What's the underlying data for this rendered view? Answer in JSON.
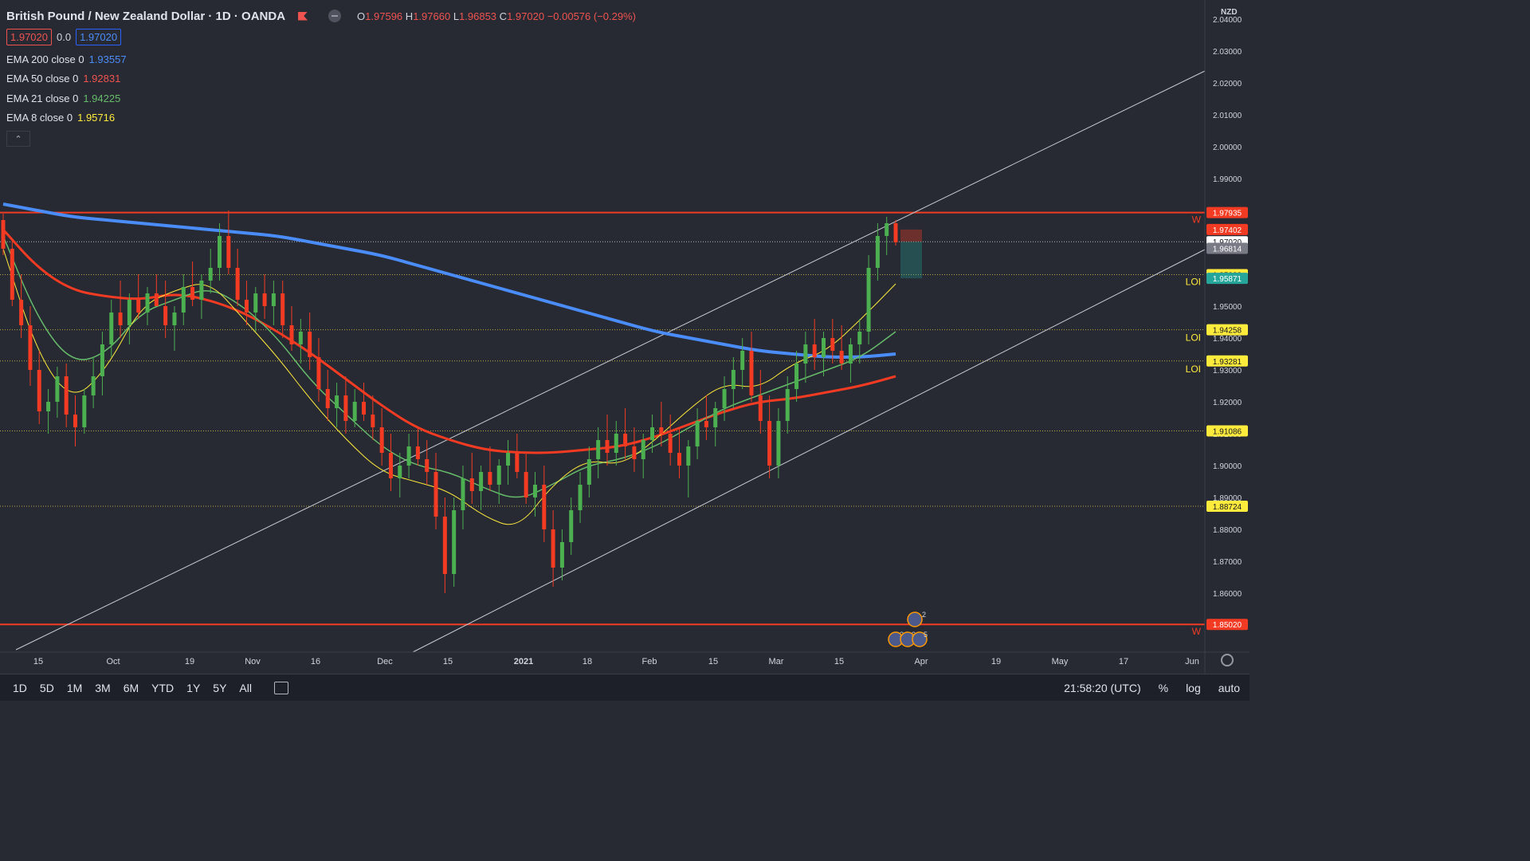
{
  "header": {
    "symbol": "British Pound / New Zealand Dollar · 1D · OANDA",
    "ohlc": [
      {
        "k": "O",
        "v": "1.97596"
      },
      {
        "k": "H",
        "v": "1.97660"
      },
      {
        "k": "L",
        "v": "1.96853"
      },
      {
        "k": "C",
        "v": "1.97020"
      },
      {
        "k": "",
        "v": "−0.00576 (−0.29%)"
      }
    ],
    "bid": "1.97020",
    "spread": "0.0",
    "ask": "1.97020"
  },
  "indicators": [
    {
      "label": "EMA 200 close 0",
      "value": "1.93557",
      "color": "#4b8df8"
    },
    {
      "label": "EMA 50 close 0",
      "value": "1.92831",
      "color": "#ef5350"
    },
    {
      "label": "EMA 21 close 0",
      "value": "1.94225",
      "color": "#66bb6a"
    },
    {
      "label": "EMA 8 close 0",
      "value": "1.95716",
      "color": "#ffeb3b"
    }
  ],
  "collapse_glyph": "⌃",
  "price_axis": {
    "currency": "NZD",
    "ticks": [
      "2.04000",
      "2.03000",
      "2.02000",
      "2.01000",
      "2.00000",
      "1.99000",
      "1.98000",
      "1.97000",
      "1.96000",
      "1.95000",
      "1.94000",
      "1.93000",
      "1.92000",
      "1.91000",
      "1.90000",
      "1.89000",
      "1.88000",
      "1.87000",
      "1.86000",
      "1.85000"
    ],
    "tick_values": [
      2.04,
      2.03,
      2.02,
      2.01,
      2.0,
      1.99,
      1.98,
      1.97,
      1.96,
      1.95,
      1.94,
      1.93,
      1.92,
      1.91,
      1.9,
      1.89,
      1.88,
      1.87,
      1.86,
      1.85
    ]
  },
  "levels": [
    {
      "price": 1.97935,
      "label": "1.97935",
      "kind": "resistance",
      "tag": "W",
      "color": "#f23b22"
    },
    {
      "price": 1.95988,
      "label": "1.95988",
      "kind": "loi",
      "tag": "LOI",
      "color": "#ffeb3b"
    },
    {
      "price": 1.94258,
      "label": "1.94258",
      "kind": "loi",
      "tag": "LOI",
      "color": "#ffeb3b"
    },
    {
      "price": 1.93281,
      "label": "1.93281",
      "kind": "loi",
      "tag": "LOI",
      "color": "#ffeb3b"
    },
    {
      "price": 1.91086,
      "label": "1.91086",
      "kind": "loi",
      "tag": "",
      "color": "#ffeb3b"
    },
    {
      "price": 1.88724,
      "label": "1.88724",
      "kind": "loi",
      "tag": "",
      "color": "#ffeb3b"
    },
    {
      "price": 1.8502,
      "label": "1.85020",
      "kind": "resistance",
      "tag": "W",
      "color": "#f23b22"
    }
  ],
  "price_tags": [
    {
      "price": 1.97402,
      "label": "1.97402",
      "bg": "#f23b22",
      "fg": "#ffffff"
    },
    {
      "price": 1.9702,
      "label": "1.97020",
      "bg": "#ffffff",
      "fg": "#131722"
    },
    {
      "price": 1.96814,
      "label": "1.96814",
      "bg": "#787b86",
      "fg": "#ffffff"
    },
    {
      "price": 1.95871,
      "label": "1.95871",
      "bg": "#26a69a",
      "fg": "#ffffff"
    }
  ],
  "time_axis": [
    "15",
    "Oct",
    "19",
    "Nov",
    "16",
    "Dec",
    "15",
    "2021",
    "18",
    "Feb",
    "15",
    "Mar",
    "15",
    "Apr",
    "19",
    "May",
    "17",
    "Jun"
  ],
  "events": {
    "top": "2",
    "bottom": [
      "2",
      "3",
      "5"
    ]
  },
  "bottom_bar": {
    "timeframes": [
      "1D",
      "5D",
      "1M",
      "3M",
      "6M",
      "YTD",
      "1Y",
      "5Y",
      "All"
    ],
    "clock": "21:58:20 (UTC)",
    "right": [
      "%",
      "log",
      "auto"
    ]
  },
  "chart_data": {
    "type": "candlestick",
    "instrument": "GBPNZD",
    "ylim": [
      1.845,
      2.045
    ],
    "series_ohlc": [
      [
        1.977,
        1.979,
        1.966,
        1.968
      ],
      [
        1.968,
        1.971,
        1.95,
        1.952
      ],
      [
        1.952,
        1.96,
        1.94,
        1.944
      ],
      [
        1.944,
        1.95,
        1.925,
        1.93
      ],
      [
        1.93,
        1.936,
        1.913,
        1.917
      ],
      [
        1.917,
        1.924,
        1.91,
        1.92
      ],
      [
        1.92,
        1.931,
        1.915,
        1.928
      ],
      [
        1.928,
        1.932,
        1.912,
        1.916
      ],
      [
        1.916,
        1.922,
        1.906,
        1.912
      ],
      [
        1.912,
        1.924,
        1.91,
        1.922
      ],
      [
        1.922,
        1.934,
        1.918,
        1.928
      ],
      [
        1.928,
        1.942,
        1.922,
        1.938
      ],
      [
        1.938,
        1.952,
        1.934,
        1.948
      ],
      [
        1.948,
        1.958,
        1.94,
        1.944
      ],
      [
        1.944,
        1.954,
        1.938,
        1.952
      ],
      [
        1.952,
        1.96,
        1.946,
        1.948
      ],
      [
        1.948,
        1.956,
        1.944,
        1.954
      ],
      [
        1.954,
        1.96,
        1.95,
        1.95
      ],
      [
        1.95,
        1.958,
        1.94,
        1.944
      ],
      [
        1.944,
        1.95,
        1.936,
        1.948
      ],
      [
        1.948,
        1.96,
        1.944,
        1.956
      ],
      [
        1.956,
        1.964,
        1.95,
        1.952
      ],
      [
        1.952,
        1.96,
        1.946,
        1.958
      ],
      [
        1.958,
        1.968,
        1.954,
        1.962
      ],
      [
        1.962,
        1.976,
        1.958,
        1.972
      ],
      [
        1.972,
        1.98,
        1.96,
        1.962
      ],
      [
        1.962,
        1.968,
        1.95,
        1.952
      ],
      [
        1.952,
        1.958,
        1.944,
        1.948
      ],
      [
        1.948,
        1.956,
        1.942,
        1.954
      ],
      [
        1.954,
        1.96,
        1.946,
        1.95
      ],
      [
        1.95,
        1.958,
        1.944,
        1.954
      ],
      [
        1.954,
        1.958,
        1.94,
        1.944
      ],
      [
        1.944,
        1.95,
        1.936,
        1.938
      ],
      [
        1.938,
        1.946,
        1.932,
        1.942
      ],
      [
        1.942,
        1.948,
        1.93,
        1.934
      ],
      [
        1.934,
        1.94,
        1.92,
        1.924
      ],
      [
        1.924,
        1.93,
        1.914,
        1.918
      ],
      [
        1.918,
        1.926,
        1.912,
        1.922
      ],
      [
        1.922,
        1.928,
        1.91,
        1.914
      ],
      [
        1.914,
        1.924,
        1.912,
        1.92
      ],
      [
        1.92,
        1.926,
        1.914,
        1.916
      ],
      [
        1.916,
        1.922,
        1.908,
        1.912
      ],
      [
        1.912,
        1.918,
        1.9,
        1.904
      ],
      [
        1.904,
        1.91,
        1.892,
        1.896
      ],
      [
        1.896,
        1.904,
        1.89,
        1.9
      ],
      [
        1.9,
        1.91,
        1.896,
        1.906
      ],
      [
        1.906,
        1.912,
        1.9,
        1.902
      ],
      [
        1.902,
        1.908,
        1.894,
        1.898
      ],
      [
        1.898,
        1.904,
        1.88,
        1.884
      ],
      [
        1.884,
        1.89,
        1.86,
        1.866
      ],
      [
        1.866,
        1.89,
        1.862,
        1.886
      ],
      [
        1.886,
        1.9,
        1.88,
        1.896
      ],
      [
        1.896,
        1.904,
        1.888,
        1.892
      ],
      [
        1.892,
        1.9,
        1.886,
        1.898
      ],
      [
        1.898,
        1.906,
        1.892,
        1.894
      ],
      [
        1.894,
        1.902,
        1.888,
        1.9
      ],
      [
        1.9,
        1.908,
        1.894,
        1.904
      ],
      [
        1.904,
        1.91,
        1.896,
        1.898
      ],
      [
        1.898,
        1.904,
        1.888,
        1.89
      ],
      [
        1.89,
        1.898,
        1.884,
        1.894
      ],
      [
        1.894,
        1.9,
        1.876,
        1.88
      ],
      [
        1.88,
        1.886,
        1.862,
        1.868
      ],
      [
        1.868,
        1.88,
        1.864,
        1.876
      ],
      [
        1.876,
        1.89,
        1.872,
        1.886
      ],
      [
        1.886,
        1.898,
        1.882,
        1.894
      ],
      [
        1.894,
        1.906,
        1.89,
        1.902
      ],
      [
        1.902,
        1.912,
        1.896,
        1.908
      ],
      [
        1.908,
        1.916,
        1.9,
        1.904
      ],
      [
        1.904,
        1.914,
        1.9,
        1.91
      ],
      [
        1.91,
        1.918,
        1.902,
        1.906
      ],
      [
        1.906,
        1.912,
        1.898,
        1.902
      ],
      [
        1.902,
        1.91,
        1.896,
        1.908
      ],
      [
        1.908,
        1.916,
        1.904,
        1.912
      ],
      [
        1.912,
        1.92,
        1.906,
        1.91
      ],
      [
        1.91,
        1.916,
        1.9,
        1.904
      ],
      [
        1.904,
        1.912,
        1.896,
        1.9
      ],
      [
        1.9,
        1.908,
        1.89,
        1.906
      ],
      [
        1.906,
        1.918,
        1.902,
        1.914
      ],
      [
        1.914,
        1.922,
        1.908,
        1.912
      ],
      [
        1.912,
        1.92,
        1.906,
        1.918
      ],
      [
        1.918,
        1.928,
        1.914,
        1.924
      ],
      [
        1.924,
        1.934,
        1.918,
        1.93
      ],
      [
        1.93,
        1.94,
        1.924,
        1.936
      ],
      [
        1.936,
        1.942,
        1.92,
        1.922
      ],
      [
        1.922,
        1.93,
        1.91,
        1.914
      ],
      [
        1.914,
        1.922,
        1.896,
        1.9
      ],
      [
        1.9,
        1.918,
        1.896,
        1.914
      ],
      [
        1.914,
        1.928,
        1.91,
        1.924
      ],
      [
        1.924,
        1.936,
        1.92,
        1.932
      ],
      [
        1.932,
        1.942,
        1.926,
        1.938
      ],
      [
        1.938,
        1.946,
        1.93,
        1.934
      ],
      [
        1.934,
        1.942,
        1.928,
        1.94
      ],
      [
        1.94,
        1.946,
        1.932,
        1.936
      ],
      [
        1.936,
        1.944,
        1.93,
        1.932
      ],
      [
        1.932,
        1.94,
        1.926,
        1.938
      ],
      [
        1.938,
        1.946,
        1.932,
        1.942
      ],
      [
        1.942,
        1.966,
        1.938,
        1.962
      ],
      [
        1.962,
        1.976,
        1.958,
        1.972
      ],
      [
        1.972,
        1.978,
        1.966,
        1.976
      ],
      [
        1.976,
        1.977,
        1.969,
        1.97
      ]
    ],
    "ema200": [
      1.982,
      1.98,
      1.978,
      1.977,
      1.976,
      1.975,
      1.974,
      1.973,
      1.972,
      1.97,
      1.968,
      1.966,
      1.963,
      1.96,
      1.957,
      1.954,
      1.951,
      1.948,
      1.945,
      1.942,
      1.94,
      1.938,
      1.936,
      1.935,
      1.934,
      1.934,
      1.935
    ],
    "ema50": [
      1.974,
      1.962,
      1.955,
      1.953,
      1.952,
      1.954,
      1.952,
      1.948,
      1.942,
      1.935,
      1.927,
      1.919,
      1.912,
      1.908,
      1.905,
      1.904,
      1.904,
      1.905,
      1.906,
      1.909,
      1.913,
      1.917,
      1.92,
      1.921,
      1.923,
      1.925,
      1.928
    ],
    "ema21": [
      1.972,
      1.946,
      1.932,
      1.935,
      1.948,
      1.952,
      1.956,
      1.95,
      1.94,
      1.926,
      1.916,
      1.906,
      1.9,
      1.898,
      1.893,
      1.889,
      1.894,
      1.9,
      1.902,
      1.906,
      1.912,
      1.918,
      1.922,
      1.926,
      1.93,
      1.934,
      1.942
    ],
    "ema8": [
      1.968,
      1.935,
      1.92,
      1.93,
      1.95,
      1.955,
      1.958,
      1.946,
      1.934,
      1.92,
      1.908,
      1.898,
      1.895,
      1.892,
      1.884,
      1.88,
      1.894,
      1.902,
      1.9,
      1.908,
      1.918,
      1.926,
      1.924,
      1.932,
      1.936,
      1.946,
      1.957
    ]
  }
}
